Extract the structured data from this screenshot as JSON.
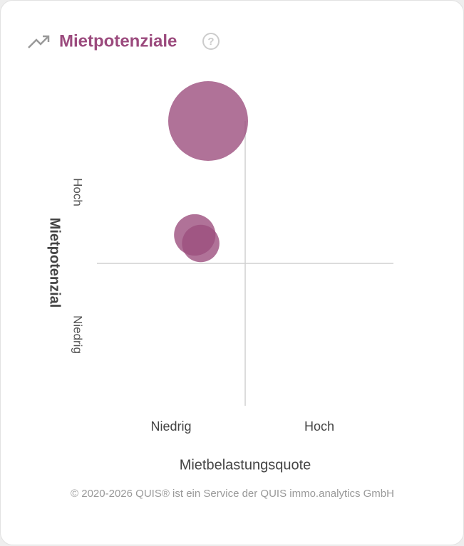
{
  "chart_data": {
    "type": "bubble",
    "title": "Mietpotenziale",
    "help": "?",
    "x_label": "Mietbelastungsquote",
    "y_label": "Mietpotenzial",
    "x_categories": [
      "Niedrig",
      "Hoch"
    ],
    "y_categories": [
      "Niedrig",
      "Hoch"
    ],
    "xlim": [
      -1,
      1
    ],
    "ylim": [
      -1,
      1
    ],
    "series": [
      {
        "color": "#9c4f7e",
        "x": [
          -0.25,
          -0.34,
          -0.3
        ],
        "values": [
          1.0,
          0.2,
          0.14
        ],
        "sizes": [
          100,
          27,
          22
        ]
      }
    ]
  },
  "footer": "© 2020-2026 QUIS® ist ein Service der QUIS immo.analytics GmbH"
}
